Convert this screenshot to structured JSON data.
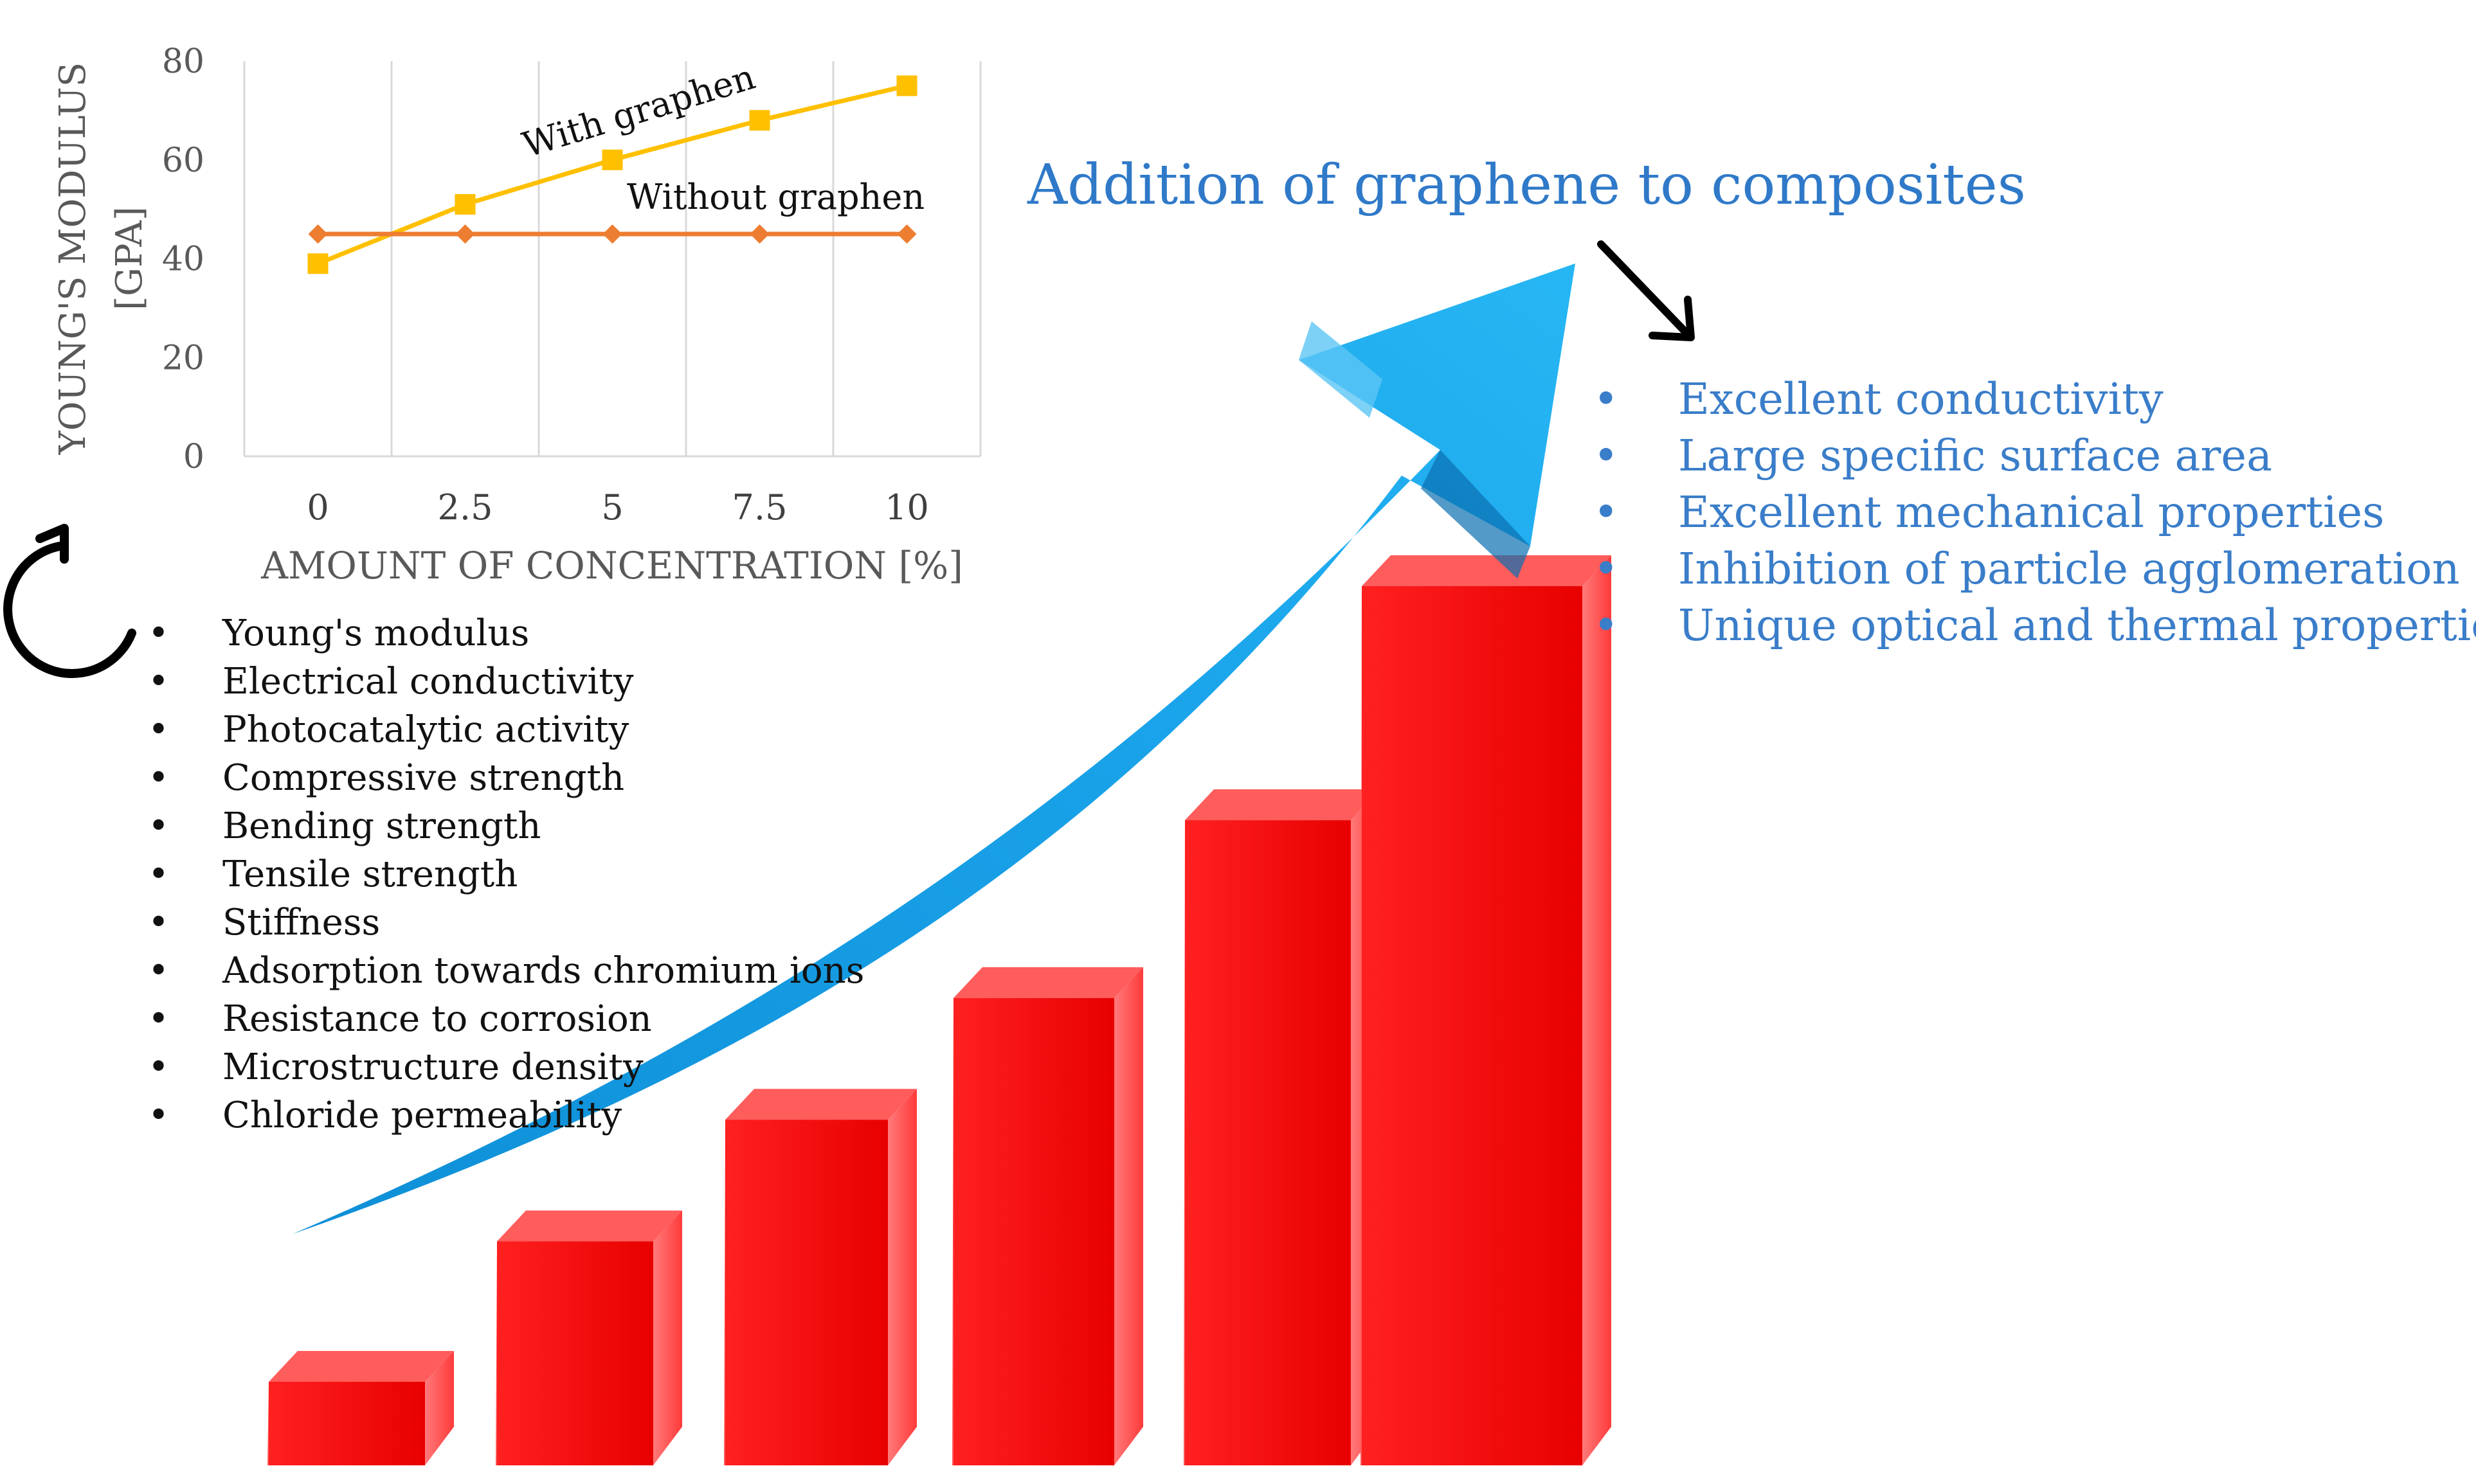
{
  "title": "Addition of graphene to composites",
  "chart_data": {
    "type": "line",
    "title": "",
    "xlabel": "AMOUNT OF CONCENTRATION [%]",
    "ylabel_line1": "YOUNG'S MODULUS",
    "ylabel_line2": "[GPA]",
    "categories": [
      "0",
      "2.5",
      "5",
      "7.5",
      "10"
    ],
    "y_ticks": [
      "0",
      "20",
      "40",
      "60",
      "80"
    ],
    "ylim": [
      0,
      80
    ],
    "grid": "vertical",
    "series": [
      {
        "name": "With graphen",
        "values": [
          39,
          51,
          60,
          68,
          75
        ],
        "color": "#ffc000",
        "marker": "square"
      },
      {
        "name": "Without graphen",
        "values": [
          45,
          45,
          45,
          45,
          45
        ],
        "color": "#ed7d31",
        "marker": "diamond"
      }
    ]
  },
  "effects": {
    "bullet": "•",
    "items": [
      "Young's modulus",
      "Electrical conductivity",
      "Photocatalytic activity",
      "Compressive strength",
      "Bending strength",
      "Tensile strength",
      "Stiffness",
      "Adsorption towards chromium ions",
      "Resistance to corrosion",
      "Microstructure density",
      "Chloride permeability"
    ]
  },
  "features": {
    "bullet": "•",
    "items": [
      "Excellent conductivity",
      "Large specific surface area",
      "Excellent mechanical properties",
      "Inhibition of particle agglomeration",
      "Unique optical and thermal properties"
    ]
  },
  "graphic": {
    "bar_color": "#ff1a1a",
    "arrow_color": "#1aa3ea",
    "bar_levels": [
      0.15,
      0.3,
      0.43,
      0.56,
      0.75,
      1.0
    ]
  }
}
